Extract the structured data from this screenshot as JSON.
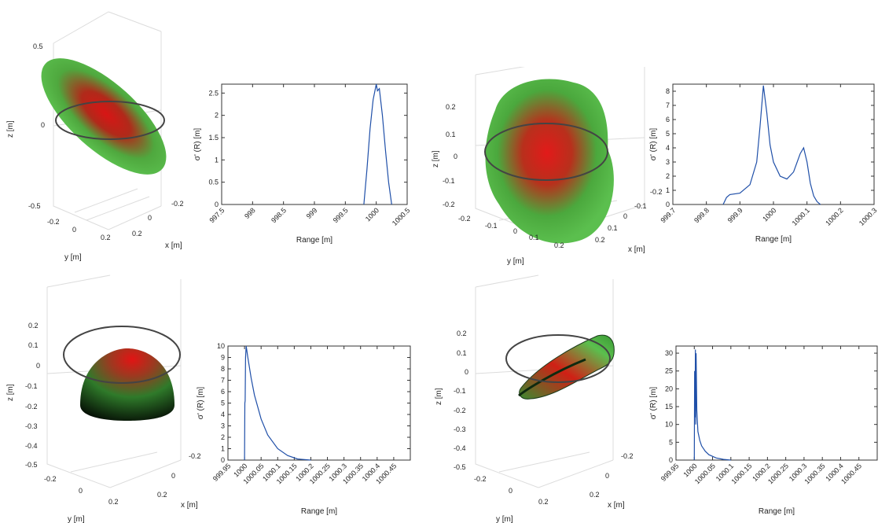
{
  "chart_data": [
    {
      "type": "surface3d",
      "panel": "top-left-3d",
      "z_label": "z [m]",
      "y_label": "y [m]",
      "x_label": "x [m]",
      "z_ticks": [
        "0.5",
        "0",
        "-0.5"
      ],
      "y_ticks": [
        "-0.2",
        "0",
        "0.2"
      ],
      "x_ticks": [
        "-0.2",
        "0",
        "0.2"
      ],
      "shape": "tilted ellipsoid",
      "colors": {
        "outer": "#3aa63a",
        "inner": "#e01414",
        "ring": "#444444"
      }
    },
    {
      "type": "line",
      "panel": "top-left-plot",
      "xlabel": "Range [m]",
      "ylabel": "σ' (R) [m]",
      "xlim": [
        997.5,
        1000.5
      ],
      "ylim": [
        0,
        2.7
      ],
      "x_ticks": [
        "997.5",
        "998",
        "998.5",
        "999",
        "999.5",
        "1000",
        "1000.5"
      ],
      "y_ticks": [
        "0",
        "0.5",
        "1",
        "1.5",
        "2",
        "2.5"
      ],
      "x": [
        999.8,
        999.85,
        999.9,
        999.95,
        1000.0,
        1000.02,
        1000.05,
        1000.1,
        1000.15,
        1000.2,
        1000.25
      ],
      "y": [
        0.0,
        0.8,
        1.7,
        2.35,
        2.7,
        2.55,
        2.6,
        2.0,
        1.2,
        0.5,
        0.0
      ],
      "color": "#1f4fa8"
    },
    {
      "type": "surface3d",
      "panel": "top-right-3d",
      "z_label": "z [m]",
      "y_label": "y [m]",
      "x_label": "x [m]",
      "z_ticks": [
        "0.2",
        "0.1",
        "0",
        "-0.1",
        "-0.2"
      ],
      "y_ticks": [
        "-0.2",
        "-0.1",
        "0",
        "0.1",
        "0.2"
      ],
      "x_ticks": [
        "-0.2",
        "-0.1",
        "0",
        "0.1",
        "0.2"
      ],
      "shape": "lumpy blob",
      "colors": {
        "outer": "#3aa63a",
        "inner": "#e01414",
        "ring": "#444444"
      }
    },
    {
      "type": "line",
      "panel": "top-right-plot",
      "xlabel": "Range [m]",
      "ylabel": "σ' (R) [m]",
      "xlim": [
        999.7,
        1000.3
      ],
      "ylim": [
        0,
        8.5
      ],
      "x_ticks": [
        "999.7",
        "999.8",
        "999.9",
        "1000",
        "1000.1",
        "1000.2",
        "1000.3"
      ],
      "y_ticks": [
        "0",
        "1",
        "2",
        "3",
        "4",
        "5",
        "6",
        "7",
        "8"
      ],
      "x": [
        999.85,
        999.86,
        999.87,
        999.9,
        999.93,
        999.95,
        999.96,
        999.97,
        999.98,
        999.99,
        1000.0,
        1000.02,
        1000.04,
        1000.06,
        1000.08,
        1000.09,
        1000.1,
        1000.11,
        1000.12,
        1000.13,
        1000.14
      ],
      "y": [
        0.0,
        0.5,
        0.7,
        0.8,
        1.4,
        3.0,
        5.5,
        8.4,
        6.5,
        4.2,
        3.0,
        2.0,
        1.8,
        2.3,
        3.6,
        4.0,
        3.0,
        1.5,
        0.6,
        0.2,
        0.0
      ],
      "color": "#1f4fa8"
    },
    {
      "type": "surface3d",
      "panel": "bottom-left-3d",
      "z_label": "z [m]",
      "y_label": "y [m]",
      "x_label": "x [m]",
      "z_ticks": [
        "0.2",
        "0.1",
        "0",
        "-0.1",
        "-0.2",
        "-0.3",
        "-0.4",
        "-0.5"
      ],
      "y_ticks": [
        "-0.2",
        "0",
        "0.2"
      ],
      "x_ticks": [
        "-0.2",
        "0",
        "0.2"
      ],
      "shape": "hemisphere",
      "colors": {
        "outer": "#0a1a0a",
        "inner": "#e01414",
        "ring": "#444444"
      }
    },
    {
      "type": "line",
      "panel": "bottom-left-plot",
      "xlabel": "Range [m]",
      "ylabel": "σ' (R) [m]",
      "xlim": [
        999.95,
        1000.5
      ],
      "ylim": [
        0,
        10
      ],
      "x_ticks": [
        "999.95",
        "1000",
        "1000.05",
        "1000.1",
        "1000.15",
        "1000.2",
        "1000.25",
        "1000.3",
        "1000.35",
        "1000.4",
        "1000.45"
      ],
      "y_ticks": [
        "0",
        "1",
        "2",
        "3",
        "4",
        "5",
        "6",
        "7",
        "8",
        "9",
        "10"
      ],
      "x": [
        1000.0,
        1000.001,
        1000.002,
        1000.003,
        1000.005,
        1000.01,
        1000.02,
        1000.03,
        1000.05,
        1000.07,
        1000.1,
        1000.13,
        1000.16,
        1000.2
      ],
      "y": [
        0.0,
        5.0,
        5.2,
        9.0,
        10.0,
        9.0,
        7.2,
        5.7,
        3.6,
        2.2,
        1.0,
        0.4,
        0.1,
        0.0
      ],
      "color": "#1f4fa8"
    },
    {
      "type": "surface3d",
      "panel": "bottom-right-3d",
      "z_label": "z [m]",
      "y_label": "y [m]",
      "x_label": "x [m]",
      "z_ticks": [
        "0.2",
        "0.1",
        "0",
        "-0.1",
        "-0.2",
        "-0.3",
        "-0.4",
        "-0.5"
      ],
      "y_ticks": [
        "-0.2",
        "0",
        "0.2"
      ],
      "x_ticks": [
        "-0.2",
        "0",
        "0.2"
      ],
      "shape": "half cylinder",
      "colors": {
        "outer": "#3aa63a",
        "inner": "#e01414",
        "ring": "#444444"
      }
    },
    {
      "type": "line",
      "panel": "bottom-right-plot",
      "xlabel": "Range [m]",
      "ylabel": "σ' (R) [m]",
      "xlim": [
        999.95,
        1000.5
      ],
      "ylim": [
        0,
        32
      ],
      "x_ticks": [
        "999.95",
        "1000",
        "1000.05",
        "1000.1",
        "1000.15",
        "1000.2",
        "1000.25",
        "1000.3",
        "1000.35",
        "1000.4",
        "1000.45"
      ],
      "y_ticks": [
        "0",
        "5",
        "10",
        "15",
        "20",
        "25",
        "30"
      ],
      "x": [
        1000.0,
        1000.001,
        1000.002,
        1000.003,
        1000.004,
        1000.005,
        1000.007,
        1000.01,
        1000.015,
        1000.02,
        1000.03,
        1000.04,
        1000.06,
        1000.08,
        1000.1
      ],
      "y": [
        0.0,
        25.0,
        12.0,
        31.0,
        10.0,
        30.0,
        14.0,
        8.0,
        5.5,
        4.0,
        2.5,
        1.5,
        0.6,
        0.2,
        0.0
      ],
      "color": "#1f4fa8"
    }
  ]
}
